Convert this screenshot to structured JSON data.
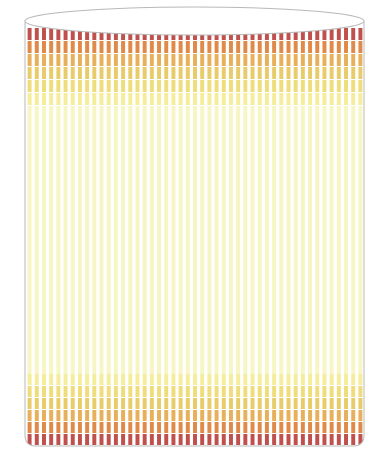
{
  "shape": {
    "kind": "cylinder",
    "outline_color": "#b8b8b8",
    "fill_color": "#ffffff"
  },
  "stripe_pattern": {
    "stripe_count": 47,
    "colors": {
      "dark_red": "#c0504d",
      "orange": "#e08a4a",
      "amber": "#e8b05a",
      "gold": "#e8cc6a",
      "yellow": "#eedd7a",
      "pale_yellow": "#f4ee9c",
      "faint_yellow": "#f8f5c4"
    },
    "top_bands": [
      "dark_red",
      "orange",
      "amber",
      "gold",
      "yellow",
      "pale_yellow"
    ],
    "middle_band": "faint_yellow",
    "bottom_bands": [
      "pale_yellow",
      "yellow",
      "gold",
      "amber",
      "orange",
      "dark_red"
    ]
  }
}
